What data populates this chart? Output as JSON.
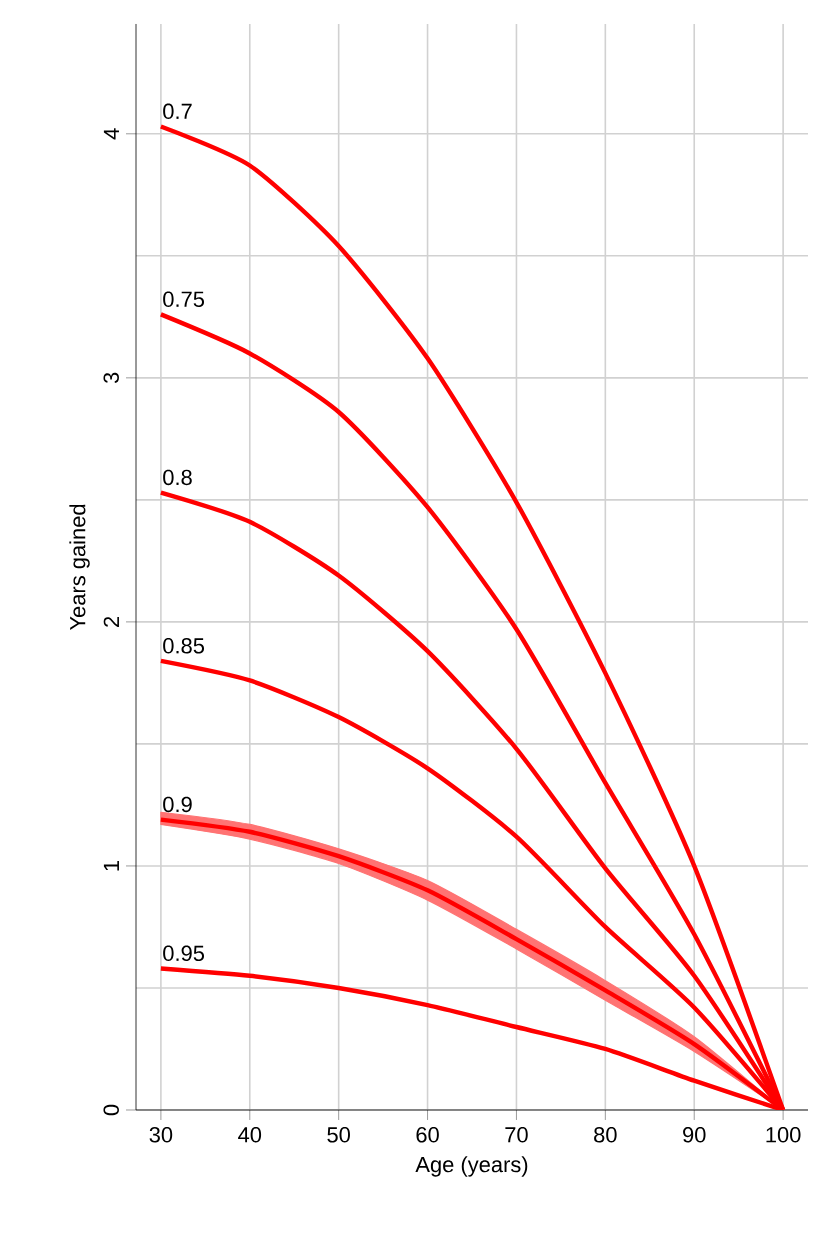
{
  "chart_data": {
    "type": "line",
    "xlabel": "Age (years)",
    "ylabel": "Years gained",
    "x": [
      30,
      40,
      50,
      60,
      70,
      80,
      90,
      100
    ],
    "series": [
      {
        "name": "0.7",
        "color": "#ff0000",
        "values": [
          4.03,
          3.87,
          3.54,
          3.08,
          2.49,
          1.79,
          1.0,
          0
        ]
      },
      {
        "name": "0.75",
        "color": "#ff0000",
        "values": [
          3.26,
          3.1,
          2.86,
          2.47,
          1.97,
          1.34,
          0.72,
          0
        ]
      },
      {
        "name": "0.8",
        "color": "#ff0000",
        "values": [
          2.53,
          2.41,
          2.19,
          1.88,
          1.48,
          0.99,
          0.55,
          0
        ]
      },
      {
        "name": "0.85",
        "color": "#ff0000",
        "values": [
          1.84,
          1.76,
          1.61,
          1.4,
          1.12,
          0.75,
          0.42,
          0
        ]
      },
      {
        "name": "0.9",
        "color": "#ff0000",
        "values": [
          1.19,
          1.14,
          1.04,
          0.9,
          0.7,
          0.49,
          0.27,
          0
        ],
        "lower": [
          1.17,
          1.11,
          1.01,
          0.86,
          0.66,
          0.45,
          0.24,
          0
        ],
        "upper": [
          1.22,
          1.17,
          1.07,
          0.94,
          0.74,
          0.53,
          0.3,
          0
        ]
      },
      {
        "name": "0.95",
        "color": "#ff0000",
        "values": [
          0.58,
          0.55,
          0.5,
          0.43,
          0.34,
          0.25,
          0.12,
          0
        ]
      }
    ],
    "xlim": [
      27.2,
      102.8
    ],
    "ylim": [
      0,
      4.45
    ],
    "xticks": [
      30,
      40,
      50,
      60,
      70,
      80,
      90,
      100
    ],
    "yticks": [
      0,
      {
        "value": 0.5,
        "label": null
      },
      1,
      {
        "value": 1.5,
        "label": null
      },
      2,
      {
        "value": 2.5,
        "label": null
      },
      3,
      {
        "value": 3.5,
        "label": null
      },
      4
    ],
    "grid": true,
    "marker": "none",
    "line_style": "solid"
  }
}
